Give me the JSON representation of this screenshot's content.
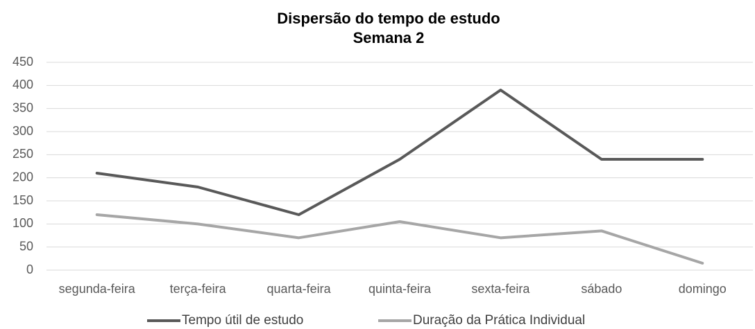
{
  "chart_data": {
    "type": "line",
    "title": "Dispersão do tempo de estudo",
    "subtitle": "Semana 2",
    "categories": [
      "segunda-feira",
      "terça-feira",
      "quarta-feira",
      "quinta-feira",
      "sexta-feira",
      "sábado",
      "domingo"
    ],
    "series": [
      {
        "name": "Tempo útil de estudo",
        "color": "#595959",
        "values": [
          210,
          180,
          120,
          240,
          390,
          240,
          240
        ]
      },
      {
        "name": "Duração da Prática Individual",
        "color": "#a6a6a6",
        "values": [
          120,
          100,
          70,
          105,
          70,
          85,
          15
        ]
      }
    ],
    "ylim": [
      0,
      450
    ],
    "yticks": [
      0,
      50,
      100,
      150,
      200,
      250,
      300,
      350,
      400,
      450
    ],
    "grid": true,
    "legend": "bottom"
  }
}
